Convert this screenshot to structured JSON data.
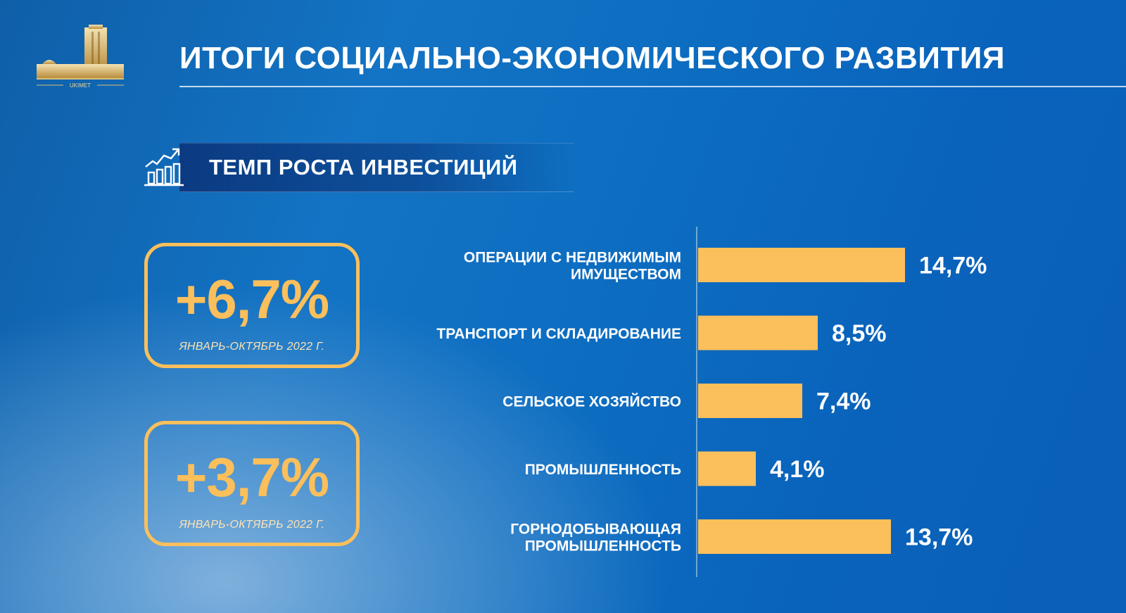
{
  "header": {
    "title": "ИТОГИ СОЦИАЛЬНО-ЭКОНОМИЧЕСКОГО РАЗВИТИЯ",
    "logo_text": "UKIMET"
  },
  "section": {
    "title": "ТЕМП РОСТА ИНВЕСТИЦИЙ",
    "icon": "growth-chart-icon"
  },
  "stats": [
    {
      "value": "+6,7%",
      "period": "ЯНВАРЬ-ОКТЯБРЬ 2022 Г."
    },
    {
      "value": "+3,7%",
      "period": "ЯНВАРЬ-ОКТЯБРЬ 2022 Г."
    }
  ],
  "colors": {
    "accent": "#fbbf5b",
    "background": "#0c6cc0",
    "text": "#ffffff"
  },
  "chart_data": {
    "type": "bar",
    "orientation": "horizontal",
    "categories": [
      [
        "ОПЕРАЦИИ С НЕДВИЖИМЫМ",
        "ИМУЩЕСТВОМ"
      ],
      [
        "ТРАНСПОРТ И СКЛАДИРОВАНИЕ"
      ],
      [
        "СЕЛЬСКОЕ ХОЗЯЙСТВО"
      ],
      [
        "ПРОМЫШЛЕННОСТЬ"
      ],
      [
        "ГОРНОДОБЫВАЮЩАЯ",
        "ПРОМЫШЛЕННОСТЬ"
      ]
    ],
    "values": [
      14.7,
      8.5,
      7.4,
      4.1,
      13.7
    ],
    "value_labels": [
      "14,7%",
      "8,5%",
      "7,4%",
      "4,1%",
      "13,7%"
    ],
    "xlim": [
      0,
      16
    ],
    "grid": false,
    "bar_color": "#fbbf5b"
  }
}
